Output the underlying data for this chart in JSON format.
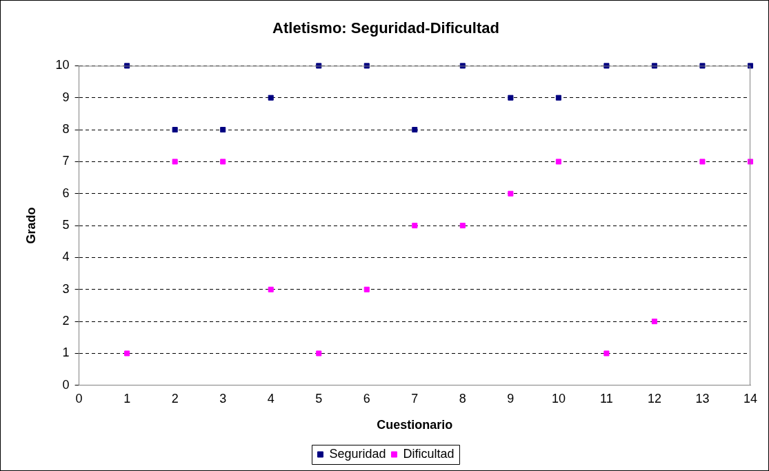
{
  "chart_data": {
    "type": "scatter",
    "title": "Atletismo: Seguridad-Dificultad",
    "xlabel": "Cuestionario",
    "ylabel": "Grado",
    "x": [
      1,
      2,
      3,
      4,
      5,
      6,
      7,
      8,
      9,
      10,
      11,
      12,
      13,
      14
    ],
    "series": [
      {
        "name": "Seguridad",
        "color": "#000080",
        "values": [
          10,
          8,
          8,
          9,
          10,
          10,
          8,
          10,
          9,
          9,
          10,
          10,
          10,
          10
        ]
      },
      {
        "name": "Dificultad",
        "color": "#ff00ff",
        "values": [
          1,
          7,
          7,
          3,
          1,
          3,
          5,
          5,
          6,
          7,
          1,
          2,
          7,
          7
        ]
      }
    ],
    "xlim": [
      0,
      14
    ],
    "xticks": [
      0,
      1,
      2,
      3,
      4,
      5,
      6,
      7,
      8,
      9,
      10,
      11,
      12,
      13,
      14
    ],
    "ylim": [
      0,
      10
    ],
    "yticks": [
      0,
      1,
      2,
      3,
      4,
      5,
      6,
      7,
      8,
      9,
      10
    ],
    "grid": "y",
    "legend": "bottom",
    "marker": "square"
  }
}
